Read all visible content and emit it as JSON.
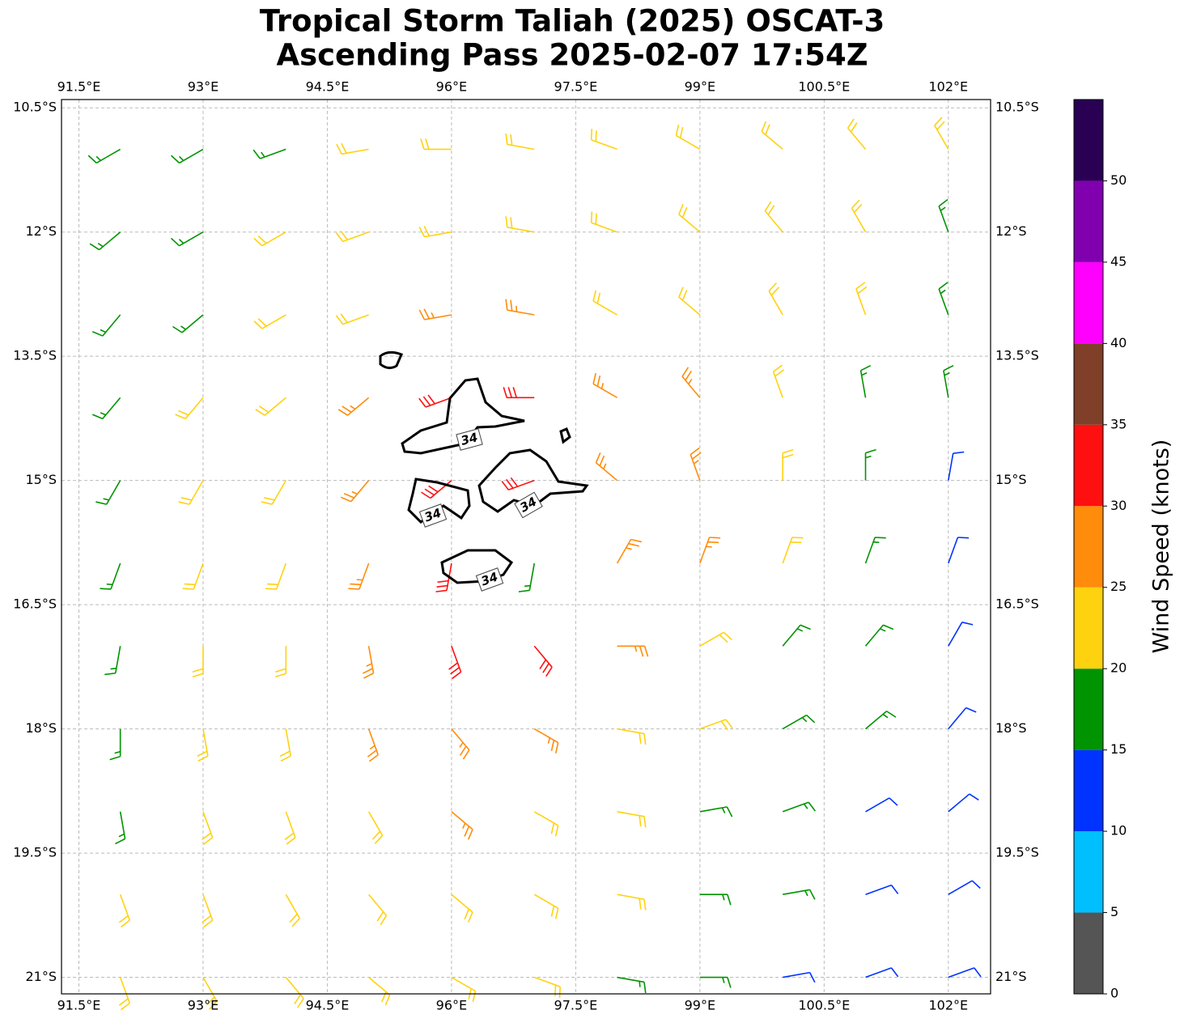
{
  "chart_data": {
    "type": "barbs",
    "title": "Tropical Storm Taliah (2025) OSCAT-3",
    "subtitle": "Ascending Pass 2025-02-07 17:54Z",
    "xlim": [
      91.29,
      102.51
    ],
    "ylim": [
      -21.2,
      -10.4
    ],
    "xticks": [
      {
        "value": 91.5,
        "label": "91.5°E"
      },
      {
        "value": 93,
        "label": "93°E"
      },
      {
        "value": 94.5,
        "label": "94.5°E"
      },
      {
        "value": 96,
        "label": "96°E"
      },
      {
        "value": 97.5,
        "label": "97.5°E"
      },
      {
        "value": 99,
        "label": "99°E"
      },
      {
        "value": 100.5,
        "label": "100.5°E"
      },
      {
        "value": 102,
        "label": "102°E"
      }
    ],
    "yticks": [
      {
        "value": -10.5,
        "label": "10.5°S"
      },
      {
        "value": -12,
        "label": "12°S"
      },
      {
        "value": -13.5,
        "label": "13.5°S"
      },
      {
        "value": -15,
        "label": "15°S"
      },
      {
        "value": -16.5,
        "label": "16.5°S"
      },
      {
        "value": -18,
        "label": "18°S"
      },
      {
        "value": -19.5,
        "label": "19.5°S"
      },
      {
        "value": -21,
        "label": "21°S"
      }
    ],
    "grid": true,
    "lons": [
      92,
      93,
      94,
      95,
      96,
      97,
      98,
      99,
      100,
      101,
      102
    ],
    "lats": [
      -11,
      -12,
      -13,
      -14,
      -15,
      -16,
      -17,
      -18,
      -19,
      -20,
      -21
    ],
    "speeds": [
      [
        17,
        17,
        18,
        20,
        22,
        24,
        22,
        22,
        21,
        20,
        20
      ],
      [
        17,
        18,
        20,
        22,
        23,
        23,
        22,
        22,
        21,
        20,
        19
      ],
      [
        18,
        19,
        22,
        24,
        26,
        26,
        24,
        23,
        22,
        20,
        18
      ],
      [
        18,
        20,
        23,
        26,
        30,
        32,
        28,
        25,
        22,
        19,
        16
      ],
      [
        18,
        20,
        23,
        27,
        32,
        31,
        28,
        25,
        22,
        18,
        14
      ],
      [
        19,
        21,
        24,
        28,
        32,
        16,
        28,
        25,
        21,
        17,
        13
      ],
      [
        19,
        21,
        23,
        27,
        30,
        32,
        25,
        22,
        19,
        16,
        13
      ],
      [
        18,
        21,
        23,
        26,
        28,
        26,
        23,
        20,
        18,
        15,
        12
      ],
      [
        19,
        21,
        23,
        24,
        25,
        24,
        22,
        18,
        16,
        14,
        11
      ],
      [
        20,
        21,
        22,
        23,
        23,
        22,
        20,
        17,
        15,
        13,
        11
      ],
      [
        20,
        21,
        21,
        22,
        22,
        21,
        19,
        16,
        14,
        12,
        11
      ]
    ],
    "directions": [
      [
        240,
        240,
        250,
        260,
        270,
        280,
        290,
        300,
        310,
        320,
        330
      ],
      [
        230,
        240,
        240,
        250,
        260,
        280,
        290,
        310,
        320,
        330,
        340
      ],
      [
        220,
        230,
        240,
        250,
        260,
        280,
        300,
        310,
        330,
        340,
        340
      ],
      [
        220,
        220,
        230,
        230,
        250,
        270,
        300,
        320,
        340,
        350,
        350
      ],
      [
        210,
        210,
        210,
        220,
        230,
        250,
        310,
        340,
        0,
        0,
        10
      ],
      [
        200,
        200,
        200,
        200,
        190,
        190,
        30,
        20,
        20,
        20,
        20
      ],
      [
        190,
        180,
        180,
        170,
        160,
        140,
        90,
        60,
        40,
        40,
        30
      ],
      [
        180,
        170,
        170,
        160,
        140,
        120,
        100,
        70,
        60,
        50,
        40
      ],
      [
        170,
        160,
        160,
        150,
        130,
        120,
        100,
        80,
        70,
        60,
        50
      ],
      [
        160,
        160,
        150,
        140,
        130,
        120,
        100,
        90,
        80,
        70,
        60
      ],
      [
        160,
        150,
        140,
        130,
        120,
        110,
        100,
        90,
        80,
        70,
        70
      ]
    ],
    "contour_level": 34,
    "colorbar": {
      "label": "Wind Speed (knots)",
      "clim": [
        0,
        55
      ],
      "ticks": [
        0,
        5,
        10,
        15,
        20,
        25,
        30,
        35,
        40,
        45,
        50
      ],
      "colors": [
        "#555555",
        "#00bfff",
        "#0033ff",
        "#009400",
        "#ffd20f",
        "#ff8c0a",
        "#ff1010",
        "#7f3f28",
        "#ff00ff",
        "#8000b0",
        "#2a0055"
      ]
    }
  }
}
